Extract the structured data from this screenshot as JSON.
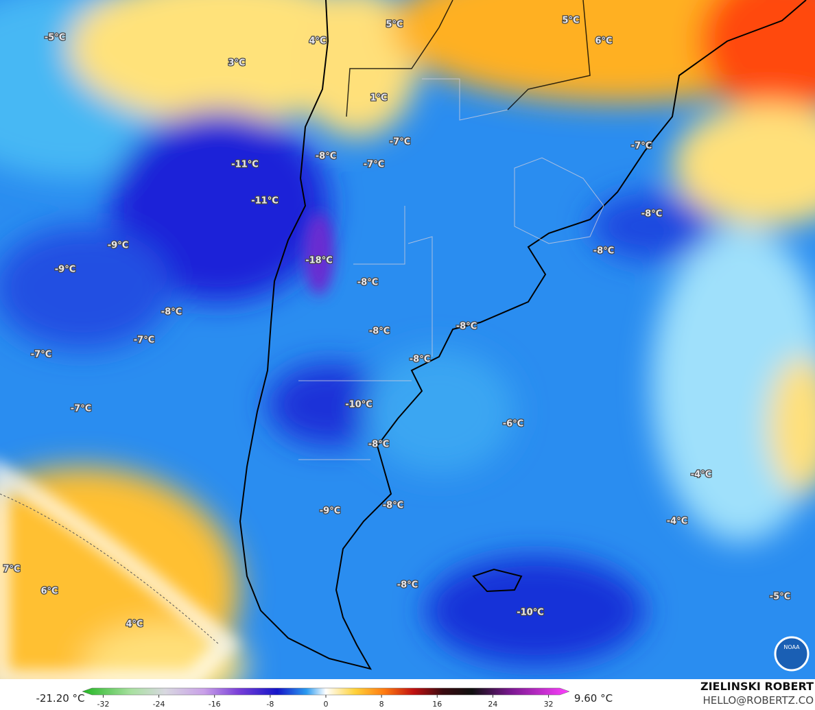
{
  "map": {
    "labels": [
      "-5°C",
      "3°C",
      "4°C",
      "5°C",
      "5°C",
      "6°C",
      "1°C",
      "-7°C",
      "-8°C",
      "-7°C",
      "-7°C",
      "-11°C",
      "-11°C",
      "-8°C",
      "-9°C",
      "-8°C",
      "-18°C",
      "-9°C",
      "-8°C",
      "-8°C",
      "-8°C",
      "-8°C",
      "-7°C",
      "-7°C",
      "-8°C",
      "-10°C",
      "-7°C",
      "-6°C",
      "-8°C",
      "-4°C",
      "-9°C",
      "-8°C",
      "-4°C",
      "7°C",
      "6°C",
      "-8°C",
      "-5°C",
      "-10°C",
      "4°C"
    ]
  },
  "colorbar": {
    "min_label": "-21.20 °C",
    "max_label": "9.60 °C",
    "lim": [
      -35,
      35
    ],
    "ticks": [
      -32,
      -24,
      -16,
      -8,
      0,
      8,
      16,
      24,
      32
    ]
  },
  "branding": {
    "name": "ZIELINSKI ROBERT",
    "contact": "HELLO@ROBERTZ.CO",
    "logo_text": "NOAA"
  }
}
